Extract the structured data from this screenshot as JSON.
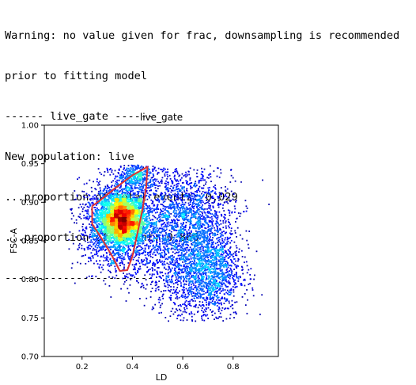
{
  "console": {
    "lines": [
      "Warning: no value given for frac, downsampling is recommended",
      "prior to fitting model",
      "------ live_gate ------",
      "New population: live",
      "...proportion of total events: 0.029",
      "...proportion of parent: 0.866",
      "-----------------------"
    ]
  },
  "chart_data": {
    "type": "scatter",
    "title": "live_gate",
    "xlabel": "LD",
    "ylabel": "FSC-A",
    "xlim": [
      0.05,
      0.98
    ],
    "ylim": [
      0.7,
      1.0
    ],
    "xticks": [
      "0.2",
      "0.4",
      "0.6",
      "0.8"
    ],
    "xtick_values": [
      0.2,
      0.4,
      0.6,
      0.8
    ],
    "yticks": [
      "0.70",
      "0.75",
      "0.80",
      "0.85",
      "0.90",
      "0.95",
      "1.00"
    ],
    "ytick_values": [
      0.7,
      0.75,
      0.8,
      0.85,
      0.9,
      0.95,
      1.0
    ],
    "colormap": "jet (point density)",
    "grid": false,
    "clusters": [
      {
        "name": "dense",
        "center": [
          0.36,
          0.878
        ],
        "spread": [
          0.045,
          0.017
        ],
        "n": 2600
      },
      {
        "name": "dense-halo",
        "center": [
          0.34,
          0.87
        ],
        "spread": [
          0.075,
          0.028
        ],
        "n": 1800
      },
      {
        "name": "top",
        "center": [
          0.42,
          0.935
        ],
        "spread": [
          0.04,
          0.01
        ],
        "n": 420
      },
      {
        "name": "right-top",
        "center": [
          0.62,
          0.895
        ],
        "spread": [
          0.09,
          0.028
        ],
        "n": 900
      },
      {
        "name": "middle",
        "center": [
          0.55,
          0.84
        ],
        "spread": [
          0.08,
          0.04
        ],
        "n": 1000
      },
      {
        "name": "lower-right",
        "center": [
          0.7,
          0.815
        ],
        "spread": [
          0.065,
          0.035
        ],
        "n": 1700
      }
    ],
    "gate_polygon": {
      "color": "#e03030",
      "points": [
        [
          0.24,
          0.895
        ],
        [
          0.27,
          0.902
        ],
        [
          0.33,
          0.918
        ],
        [
          0.4,
          0.935
        ],
        [
          0.46,
          0.946
        ],
        [
          0.455,
          0.92
        ],
        [
          0.44,
          0.89
        ],
        [
          0.42,
          0.86
        ],
        [
          0.4,
          0.83
        ],
        [
          0.38,
          0.812
        ],
        [
          0.35,
          0.811
        ],
        [
          0.32,
          0.83
        ],
        [
          0.28,
          0.852
        ],
        [
          0.24,
          0.872
        ],
        [
          0.24,
          0.895
        ]
      ]
    }
  }
}
